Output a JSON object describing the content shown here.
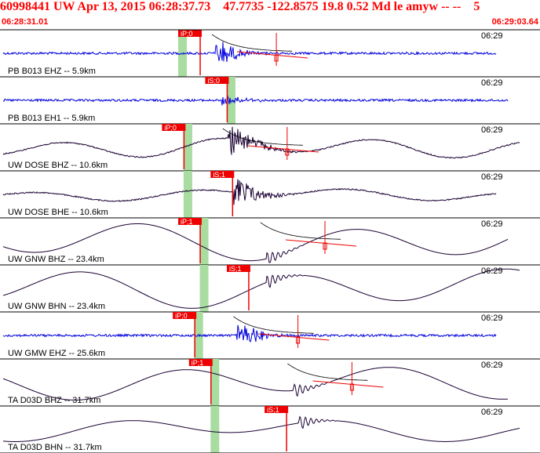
{
  "header": {
    "title": "60998441 UW Apr 13, 2015 06:28:37.73    47.7735 -122.8575 19.8 0.52 Md le amyw -- --    5",
    "start_time": "06:28:31.01",
    "end_time": "06:29:03.64"
  },
  "colors": {
    "title": "#ff0000",
    "blue_trace": "#0000dd",
    "dark_trace": "#1a0033",
    "pick_bg": "#ee0000",
    "pick_window": "#a8dca0",
    "arrival_curve": "#000000"
  },
  "traces": [
    {
      "label": "PB B013 EHZ -- 5.9km",
      "time_label": "06:29",
      "color": "blue",
      "pick": "iP;0",
      "amp": 0.35,
      "kind": "noise",
      "arrival": 0.41,
      "pick_at": 0.33,
      "win": 0.33,
      "has_fit": true
    },
    {
      "label": "PB B013 EH1 -- 5.9km",
      "time_label": "06:29",
      "color": "blue",
      "pick": "iS;0",
      "amp": 0.15,
      "kind": "noise",
      "arrival": 0.42,
      "pick_at": 0.38,
      "win": 0.42,
      "has_fit": false
    },
    {
      "label": "UW DOSE BHZ -- 10.6km",
      "time_label": "06:29",
      "color": "dark",
      "pick": "iP;0",
      "amp": 0.8,
      "kind": "wave",
      "arrival": 0.43,
      "pick_at": 0.3,
      "win": 0.34,
      "has_fit": true
    },
    {
      "label": "UW DOSE BHE -- 10.6km",
      "time_label": "06:29",
      "color": "dark",
      "pick": "iS;1",
      "amp": 0.4,
      "kind": "wave",
      "arrival": 0.44,
      "pick_at": 0.39,
      "win": 0.34,
      "has_fit": false
    },
    {
      "label": "UW GNW BHZ -- 23.4km",
      "time_label": "06:29",
      "color": "dark",
      "pick": "iP;1",
      "amp": 0.9,
      "kind": "smooth",
      "arrival": 0.5,
      "pick_at": 0.33,
      "win": 0.37,
      "has_fit": true
    },
    {
      "label": "UW GNW BHN -- 23.4km",
      "time_label": "06:29",
      "color": "dark",
      "pick": "iS;1",
      "amp": 0.9,
      "kind": "smooth",
      "arrival": 0.5,
      "pick_at": 0.42,
      "win": 0.37,
      "has_fit": false
    },
    {
      "label": "UW GMW EHZ -- 25.6km",
      "time_label": "06:29",
      "color": "blue",
      "pick": "iP;0",
      "amp": 0.4,
      "kind": "noise",
      "arrival": 0.45,
      "pick_at": 0.32,
      "win": 0.36,
      "has_fit": true
    },
    {
      "label": "TA D03D BHZ -- 31.7km",
      "time_label": "06:29",
      "color": "dark",
      "pick": "iP;1",
      "amp": 0.75,
      "kind": "smooth",
      "arrival": 0.55,
      "pick_at": 0.35,
      "win": 0.39,
      "has_fit": true
    },
    {
      "label": "TA D03D BHN -- 31.7km",
      "time_label": "06:29",
      "color": "dark",
      "pick": "iS;1",
      "amp": 0.45,
      "kind": "smooth",
      "arrival": 0.56,
      "pick_at": 0.49,
      "win": 0.39,
      "has_fit": false
    }
  ]
}
